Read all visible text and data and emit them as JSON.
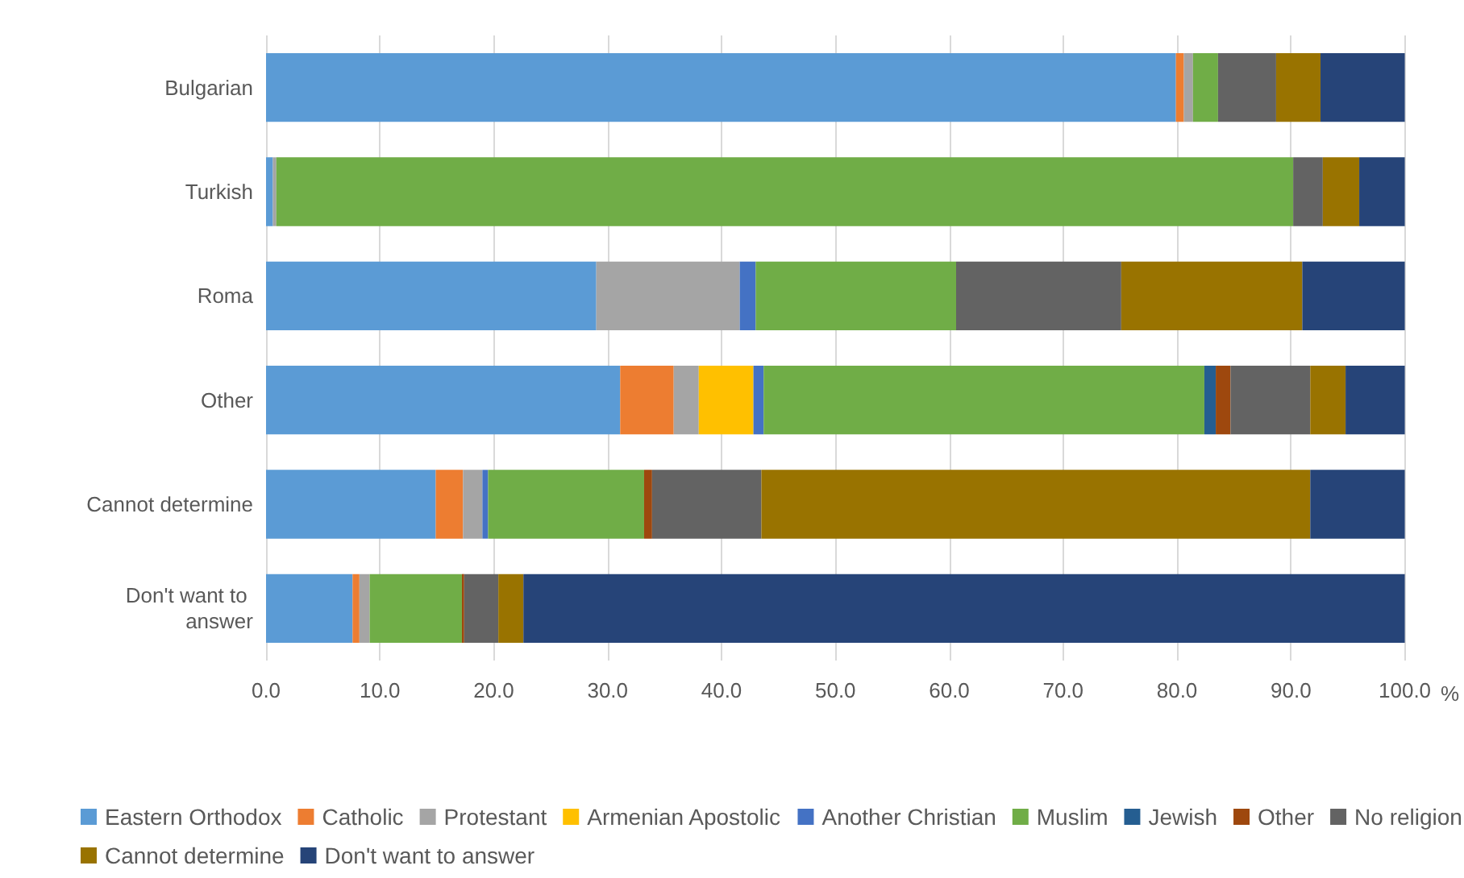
{
  "chart_data": {
    "type": "bar",
    "orientation": "horizontal",
    "stacked": true,
    "xlabel": "%",
    "categories": [
      "Bulgarian",
      "Turkish",
      "Roma",
      "Other",
      "Cannot determine",
      "Don't want to answer"
    ],
    "series": [
      {
        "name": "Eastern Orthodox",
        "color": "#5b9bd5",
        "values": [
          79.9,
          0.6,
          29.0,
          31.1,
          14.9,
          7.6
        ]
      },
      {
        "name": "Catholic",
        "color": "#ed7d31",
        "values": [
          0.7,
          0,
          0,
          4.7,
          2.4,
          0.6
        ]
      },
      {
        "name": "Protestant",
        "color": "#a5a5a5",
        "values": [
          0.8,
          0.3,
          12.6,
          2.2,
          1.7,
          0.9
        ]
      },
      {
        "name": "Armenian Apostolic",
        "color": "#ffc000",
        "values": [
          0,
          0,
          0,
          4.8,
          0,
          0
        ]
      },
      {
        "name": "Another Christian",
        "color": "#4472c4",
        "values": [
          0,
          0,
          1.4,
          0.9,
          0.5,
          0
        ]
      },
      {
        "name": "Muslim",
        "color": "#70ad47",
        "values": [
          2.2,
          89.3,
          17.6,
          38.7,
          13.7,
          8.1
        ]
      },
      {
        "name": "Jewish",
        "color": "#255e91",
        "values": [
          0,
          0,
          0,
          1.0,
          0,
          0
        ]
      },
      {
        "name": "Other",
        "color": "#9e480e",
        "values": [
          0,
          0,
          0,
          1.3,
          0.7,
          0.2
        ]
      },
      {
        "name": "No religion",
        "color": "#636363",
        "values": [
          5.1,
          2.6,
          14.5,
          7.0,
          9.6,
          3.0
        ]
      },
      {
        "name": "Cannot determine",
        "color": "#997300",
        "values": [
          3.9,
          3.2,
          15.9,
          3.1,
          48.2,
          2.2
        ]
      },
      {
        "name": "Don't want to answer",
        "color": "#264478",
        "values": [
          7.4,
          4.0,
          9.0,
          5.2,
          8.3,
          77.4
        ]
      }
    ],
    "xlim": [
      0,
      100
    ],
    "xticks": [
      {
        "value": 0,
        "label": "0.0"
      },
      {
        "value": 10,
        "label": "10.0"
      },
      {
        "value": 20,
        "label": "20.0"
      },
      {
        "value": 30,
        "label": "30.0"
      },
      {
        "value": 40,
        "label": "40.0"
      },
      {
        "value": 50,
        "label": "50.0"
      },
      {
        "value": 60,
        "label": "60.0"
      },
      {
        "value": 70,
        "label": "70.0"
      },
      {
        "value": 80,
        "label": "80.0"
      },
      {
        "value": 90,
        "label": "90.0"
      },
      {
        "value": 100,
        "label": "100.0"
      }
    ],
    "grid": "x",
    "legend": "bottom"
  }
}
